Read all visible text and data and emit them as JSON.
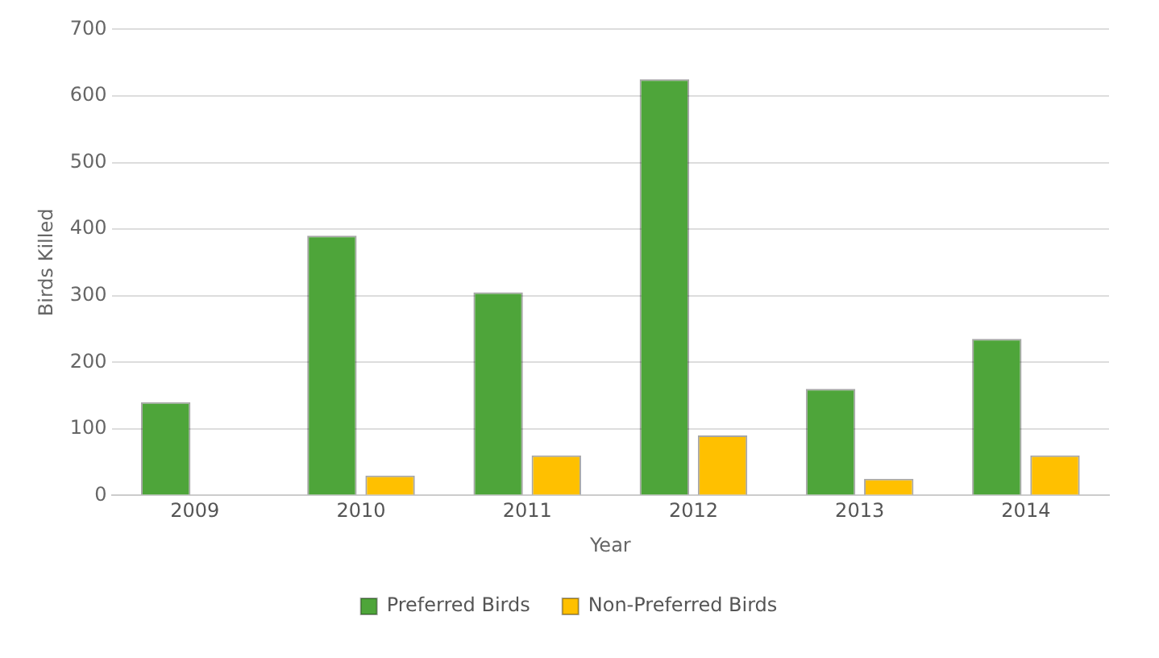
{
  "chart_data": {
    "type": "bar",
    "xlabel": "Year",
    "ylabel": "Birds Killed",
    "categories": [
      "2009",
      "2010",
      "2011",
      "2012",
      "2013",
      "2014"
    ],
    "series": [
      {
        "name": "Preferred Birds",
        "color": "#4ea53a",
        "values": [
          140,
          390,
          305,
          625,
          160,
          235
        ]
      },
      {
        "name": "Non-Preferred Birds",
        "color": "#ffc000",
        "values": [
          null,
          30,
          60,
          90,
          25,
          60
        ]
      }
    ],
    "ylim": [
      0,
      700
    ],
    "yticks": [
      0,
      100,
      200,
      300,
      400,
      500,
      600,
      700
    ],
    "grid": "y",
    "legend": "bottom"
  }
}
